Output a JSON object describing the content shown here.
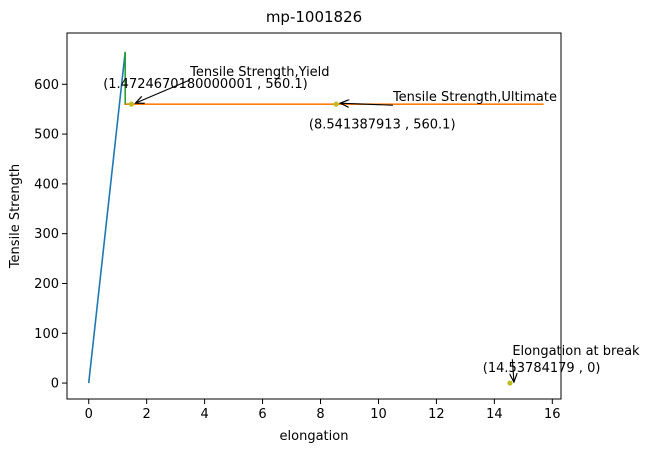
{
  "chart_data": {
    "type": "line",
    "title": "mp-1001826",
    "xlabel": "elongation",
    "ylabel": "Tensile Strength",
    "xlim": [
      -0.75,
      16.3
    ],
    "ylim": [
      -32,
      703
    ],
    "xticks": [
      0,
      2,
      4,
      6,
      8,
      10,
      12,
      14,
      16
    ],
    "yticks": [
      0,
      100,
      200,
      300,
      400,
      500,
      600
    ],
    "grid": false,
    "series": [
      {
        "color": "#1f77b4",
        "x": [
          0,
          1.26
        ],
        "y": [
          0,
          665
        ]
      },
      {
        "color": "#2ca02c",
        "x": [
          1.26,
          1.26,
          1.4724670180000001
        ],
        "y": [
          665,
          560.1,
          560.1
        ]
      },
      {
        "color": "#ff7f0e",
        "x": [
          1.26,
          15.7
        ],
        "y": [
          560.1,
          560.1
        ]
      }
    ],
    "points": [
      {
        "x": 1.4724670180000001,
        "y": 560.1,
        "color": "#bcbd22"
      },
      {
        "x": 8.541387913,
        "y": 560.1,
        "color": "#bcbd22"
      },
      {
        "x": 14.53784179,
        "y": 0,
        "color": "#bcbd22"
      }
    ],
    "annotations": [
      {
        "name": "yield",
        "text": "Tensile Strength,Yield",
        "target_x": 1.4724670180000001,
        "target_y": 560.1,
        "text_x": 3.5,
        "text_y": 617
      },
      {
        "name": "ultimate",
        "text": "Tensile Strength,Ultimate",
        "target_x": 8.541387913,
        "target_y": 560.1,
        "text_x": 10.5,
        "text_y": 566
      },
      {
        "name": "break",
        "text": "Elongation at break",
        "target_x": 14.53784179,
        "target_y": 0,
        "text_x": 14.62,
        "text_y": 56
      }
    ],
    "coord_labels": [
      {
        "text": "(1.4724670180000001 , 560.1)",
        "x": 0.5,
        "y": 593
      },
      {
        "text": "(8.541387913 , 560.1)",
        "x": 7.6,
        "y": 511
      },
      {
        "text": "(14.53784179 , 0)",
        "x": 13.6,
        "y": 22
      }
    ]
  }
}
